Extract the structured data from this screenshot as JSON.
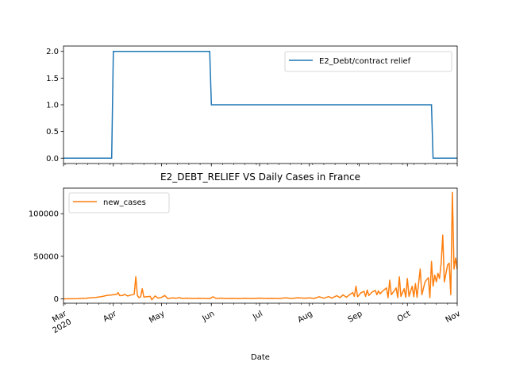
{
  "chart_data": [
    {
      "type": "line",
      "title": "",
      "xlabel": "",
      "ylabel": "",
      "ylim": [
        -0.1,
        2.1
      ],
      "yticks": [
        "0.0",
        "0.5",
        "1.0",
        "1.5",
        "2.0"
      ],
      "ytick_values": [
        0.0,
        0.5,
        1.0,
        1.5,
        2.0
      ],
      "legend_position": "upper right",
      "grid": false,
      "series": [
        {
          "name": "E2_Debt/contract relief",
          "color": "#1f77b4",
          "points": [
            [
              "2020-03-01",
              0
            ],
            [
              "2020-03-31",
              0
            ],
            [
              "2020-04-01",
              2
            ],
            [
              "2020-05-31",
              2
            ],
            [
              "2020-06-01",
              1
            ],
            [
              "2020-10-16",
              1
            ],
            [
              "2020-10-17",
              0
            ],
            [
              "2020-11-01",
              0
            ]
          ]
        }
      ]
    },
    {
      "type": "line",
      "title": "E2_DEBT_RELIEF VS Daily Cases in France",
      "xlabel": "Date",
      "ylabel": "",
      "ylim": [
        -5000,
        130000
      ],
      "yticks": [
        "0",
        "50000",
        "100000"
      ],
      "ytick_values": [
        0,
        50000,
        100000
      ],
      "xticks": [
        "Mar\n2020",
        "Apr",
        "May",
        "Jun",
        "Jul",
        "Aug",
        "Sep",
        "Oct",
        "Nov"
      ],
      "xtick_dates": [
        "2020-03-01",
        "2020-04-01",
        "2020-05-01",
        "2020-06-01",
        "2020-07-01",
        "2020-08-01",
        "2020-09-01",
        "2020-10-01",
        "2020-11-01"
      ],
      "legend_position": "upper left",
      "grid": false,
      "series": [
        {
          "name": "new_cases",
          "color": "#ff7f0e",
          "points": [
            [
              "2020-03-01",
              100
            ],
            [
              "2020-03-05",
              200
            ],
            [
              "2020-03-10",
              400
            ],
            [
              "2020-03-15",
              900
            ],
            [
              "2020-03-18",
              1400
            ],
            [
              "2020-03-21",
              1800
            ],
            [
              "2020-03-24",
              2500
            ],
            [
              "2020-03-26",
              3300
            ],
            [
              "2020-03-28",
              4200
            ],
            [
              "2020-03-30",
              4400
            ],
            [
              "2020-04-01",
              5000
            ],
            [
              "2020-04-03",
              5200
            ],
            [
              "2020-04-04",
              7500
            ],
            [
              "2020-04-05",
              3800
            ],
            [
              "2020-04-07",
              4200
            ],
            [
              "2020-04-08",
              5400
            ],
            [
              "2020-04-10",
              3500
            ],
            [
              "2020-04-12",
              4600
            ],
            [
              "2020-04-14",
              5500
            ],
            [
              "2020-04-15",
              26000
            ],
            [
              "2020-04-16",
              4000
            ],
            [
              "2020-04-17",
              1500
            ],
            [
              "2020-04-18",
              2500
            ],
            [
              "2020-04-19",
              12000
            ],
            [
              "2020-04-20",
              2300
            ],
            [
              "2020-04-22",
              2700
            ],
            [
              "2020-04-24",
              3000
            ],
            [
              "2020-04-25",
              -1000
            ],
            [
              "2020-04-27",
              3500
            ],
            [
              "2020-04-29",
              1000
            ],
            [
              "2020-05-01",
              1800
            ],
            [
              "2020-05-03",
              4000
            ],
            [
              "2020-05-05",
              300
            ],
            [
              "2020-05-08",
              1200
            ],
            [
              "2020-05-10",
              800
            ],
            [
              "2020-05-12",
              1500
            ],
            [
              "2020-05-14",
              600
            ],
            [
              "2020-05-17",
              1000
            ],
            [
              "2020-05-20",
              500
            ],
            [
              "2020-05-24",
              900
            ],
            [
              "2020-05-28",
              600
            ],
            [
              "2020-05-31",
              300
            ],
            [
              "2020-06-02",
              2500
            ],
            [
              "2020-06-04",
              600
            ],
            [
              "2020-06-07",
              1000
            ],
            [
              "2020-06-10",
              500
            ],
            [
              "2020-06-14",
              700
            ],
            [
              "2020-06-18",
              400
            ],
            [
              "2020-06-22",
              800
            ],
            [
              "2020-06-26",
              500
            ],
            [
              "2020-07-01",
              1000
            ],
            [
              "2020-07-05",
              600
            ],
            [
              "2020-07-09",
              700
            ],
            [
              "2020-07-13",
              500
            ],
            [
              "2020-07-17",
              1200
            ],
            [
              "2020-07-21",
              600
            ],
            [
              "2020-07-25",
              1400
            ],
            [
              "2020-07-29",
              800
            ],
            [
              "2020-08-01",
              1300
            ],
            [
              "2020-08-04",
              600
            ],
            [
              "2020-08-07",
              2500
            ],
            [
              "2020-08-10",
              900
            ],
            [
              "2020-08-13",
              2700
            ],
            [
              "2020-08-15",
              1000
            ],
            [
              "2020-08-18",
              3800
            ],
            [
              "2020-08-20",
              1500
            ],
            [
              "2020-08-22",
              4800
            ],
            [
              "2020-08-24",
              2000
            ],
            [
              "2020-08-26",
              5000
            ],
            [
              "2020-08-28",
              7500
            ],
            [
              "2020-08-29",
              3000
            ],
            [
              "2020-08-30",
              15000
            ],
            [
              "2020-08-31",
              2500
            ],
            [
              "2020-09-02",
              7000
            ],
            [
              "2020-09-04",
              9000
            ],
            [
              "2020-09-05",
              3000
            ],
            [
              "2020-09-06",
              10500
            ],
            [
              "2020-09-07",
              4000
            ],
            [
              "2020-09-09",
              8000
            ],
            [
              "2020-09-11",
              10000
            ],
            [
              "2020-09-12",
              5000
            ],
            [
              "2020-09-13",
              9500
            ],
            [
              "2020-09-14",
              6000
            ],
            [
              "2020-09-16",
              10000
            ],
            [
              "2020-09-18",
              13000
            ],
            [
              "2020-09-19",
              1500
            ],
            [
              "2020-09-20",
              22000
            ],
            [
              "2020-09-21",
              5000
            ],
            [
              "2020-09-23",
              10000
            ],
            [
              "2020-09-24",
              13000
            ],
            [
              "2020-09-25",
              1500
            ],
            [
              "2020-09-26",
              26000
            ],
            [
              "2020-09-27",
              3000
            ],
            [
              "2020-09-29",
              12000
            ],
            [
              "2020-09-30",
              2000
            ],
            [
              "2020-10-01",
              24000
            ],
            [
              "2020-10-02",
              3000
            ],
            [
              "2020-10-04",
              15000
            ],
            [
              "2020-10-05",
              2500
            ],
            [
              "2020-10-06",
              18000
            ],
            [
              "2020-10-07",
              2000
            ],
            [
              "2020-10-09",
              35000
            ],
            [
              "2020-10-10",
              5000
            ],
            [
              "2020-10-12",
              20000
            ],
            [
              "2020-10-14",
              25000
            ],
            [
              "2020-10-15",
              1500
            ],
            [
              "2020-10-16",
              44000
            ],
            [
              "2020-10-17",
              15000
            ],
            [
              "2020-10-18",
              28000
            ],
            [
              "2020-10-19",
              20000
            ],
            [
              "2020-10-20",
              30000
            ],
            [
              "2020-10-21",
              24000
            ],
            [
              "2020-10-22",
              42000
            ],
            [
              "2020-10-23",
              75000
            ],
            [
              "2020-10-24",
              20000
            ],
            [
              "2020-10-26",
              40000
            ],
            [
              "2020-10-27",
              42000
            ],
            [
              "2020-10-28",
              5000
            ],
            [
              "2020-10-29",
              125000
            ],
            [
              "2020-10-30",
              35000
            ],
            [
              "2020-10-31",
              48000
            ],
            [
              "2020-11-01",
              35000
            ]
          ]
        }
      ]
    }
  ]
}
